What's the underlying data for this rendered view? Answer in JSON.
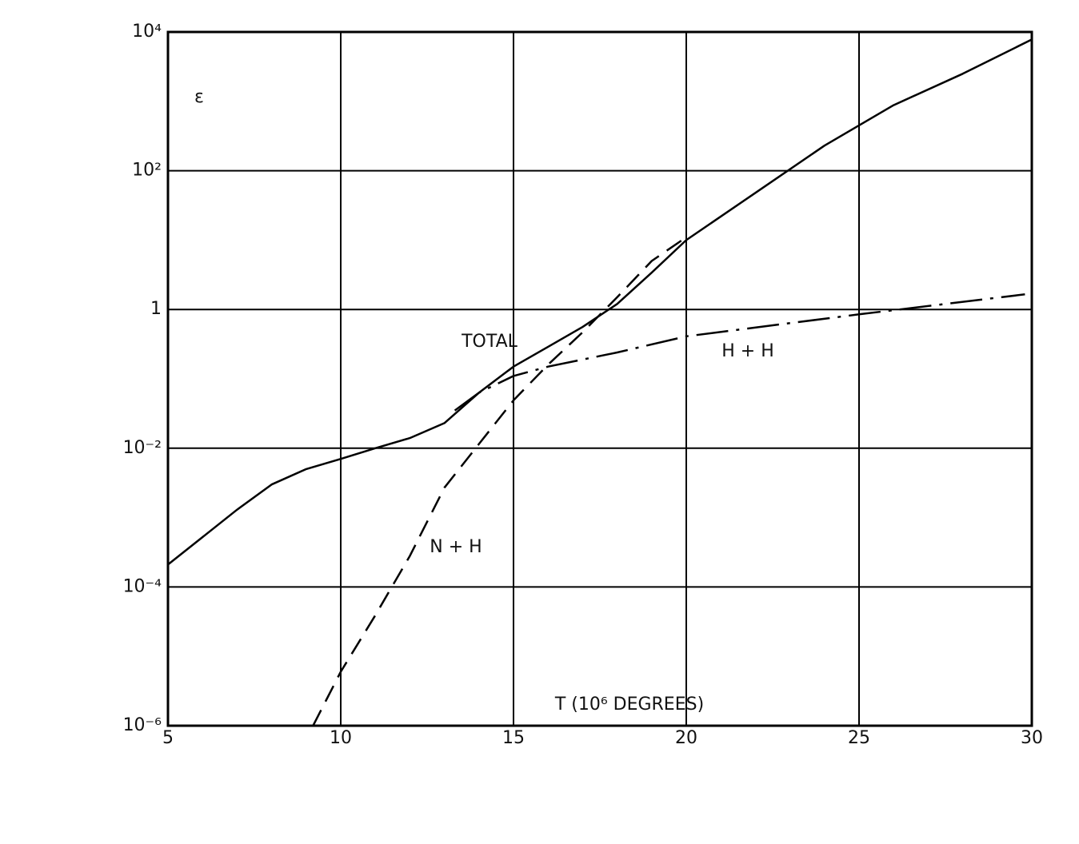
{
  "chart_data": {
    "type": "line",
    "y_label": "ε",
    "x_label": "T (10⁶ DEGREES)",
    "ylog": true,
    "grid": true,
    "xlim": [
      5,
      30
    ],
    "xticks": [
      5,
      10,
      15,
      20,
      25,
      30
    ],
    "ylim": [
      1e-06,
      10000
    ],
    "yticks": [
      {
        "value": 1e-06,
        "label": "10⁻⁶"
      },
      {
        "value": 0.0001,
        "label": "10⁻⁴"
      },
      {
        "value": 0.01,
        "label": "10⁻²"
      },
      1,
      {
        "value": 100,
        "label": "10²"
      },
      {
        "value": 10000,
        "label": "10⁴"
      }
    ],
    "series": [
      {
        "name": "TOTAL",
        "color": "#000000",
        "dash": "solid",
        "x": [
          5,
          7,
          8,
          9,
          10,
          11,
          12,
          13,
          14,
          15,
          16,
          17,
          18,
          19,
          20,
          22,
          24,
          26,
          28,
          30
        ],
        "values": [
          0.00021,
          0.0013,
          0.003,
          0.005,
          0.007,
          0.01,
          0.014,
          0.023,
          0.063,
          0.15,
          0.29,
          0.56,
          1.2,
          3.4,
          10,
          48,
          230,
          880,
          2500,
          7800
        ]
      },
      {
        "name": "N + H",
        "color": "#000000",
        "dash": "dashed",
        "x": [
          9.2,
          10,
          11,
          12,
          13,
          14,
          15,
          16,
          17,
          18,
          19,
          20
        ],
        "values": [
          1e-06,
          6e-06,
          3.9e-05,
          0.00028,
          0.0027,
          0.0115,
          0.049,
          0.16,
          0.47,
          1.5,
          5,
          11
        ]
      },
      {
        "name": "H + H",
        "color": "#000000",
        "dash": "dashdot",
        "x": [
          13.3,
          14,
          15,
          16,
          18,
          20,
          25,
          29.8
        ],
        "values": [
          0.035,
          0.063,
          0.11,
          0.15,
          0.24,
          0.41,
          0.85,
          1.65
        ]
      }
    ]
  }
}
